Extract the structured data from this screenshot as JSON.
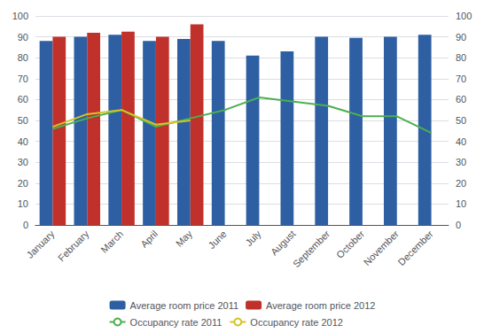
{
  "chart_data": {
    "type": "bar",
    "categories": [
      "January",
      "February",
      "March",
      "April",
      "May",
      "June",
      "July",
      "August",
      "September",
      "October",
      "November",
      "December"
    ],
    "series": [
      {
        "name": "Average room price 2011",
        "type": "bar",
        "color": "#2E5FA3",
        "values": [
          88,
          90,
          91,
          88,
          89,
          88,
          81,
          83,
          90,
          89.5,
          90,
          91
        ]
      },
      {
        "name": "Average room price 2012",
        "type": "bar",
        "color": "#C0312B",
        "values": [
          90,
          92,
          92.5,
          90,
          96,
          null,
          null,
          null,
          null,
          null,
          null,
          null
        ]
      },
      {
        "name": "Occupancy rate 2011",
        "type": "line",
        "axis": "y2",
        "color": "#4CAF50",
        "values": [
          46,
          51,
          55,
          47,
          51,
          55,
          61,
          59,
          57,
          52,
          52,
          44
        ]
      },
      {
        "name": "Occupancy rate 2012",
        "type": "line",
        "axis": "y2",
        "color": "#D4C427",
        "values": [
          47,
          53,
          55,
          48,
          50,
          null,
          null,
          null,
          null,
          null,
          null,
          null
        ]
      }
    ],
    "ylim": [
      0,
      100
    ],
    "yticks": [
      0,
      10,
      20,
      30,
      40,
      50,
      60,
      70,
      80,
      90,
      100
    ],
    "y2lim": [
      0,
      100
    ],
    "y2ticks": [
      0,
      10,
      20,
      30,
      40,
      50,
      60,
      70,
      80,
      90,
      100
    ],
    "grid": true,
    "legend": "bottom"
  }
}
